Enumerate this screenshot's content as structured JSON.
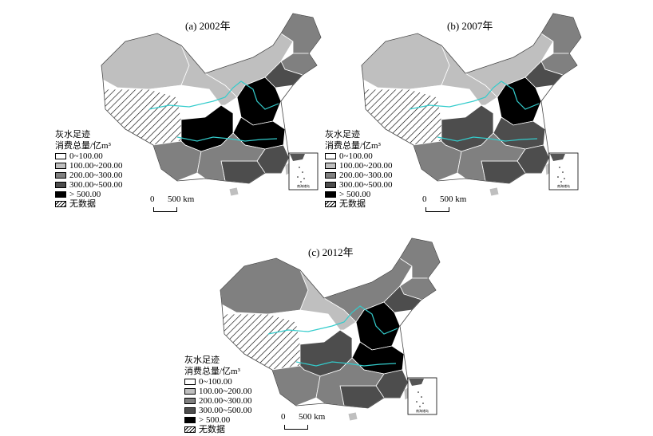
{
  "legend": {
    "title_line1": "灰水足迹",
    "title_line2": "消费总量/亿m³",
    "classes": [
      {
        "label": "0~100.00",
        "color": "#ffffff"
      },
      {
        "label": "100.00~200.00",
        "color": "#bfbfbf"
      },
      {
        "label": "200.00~300.00",
        "color": "#808080"
      },
      {
        "label": "300.00~500.00",
        "color": "#4d4d4d"
      },
      {
        "label": "> 500.00",
        "color": "#000000"
      }
    ],
    "nodata_label": "无数据"
  },
  "scale": {
    "zero": "0",
    "distance": "500 km"
  },
  "inset_label": "南海诸岛",
  "river_color": "#33cccc",
  "panels": [
    {
      "title": "(a) 2002年",
      "regions": {
        "xinjiang": 1,
        "tibet": "nodata",
        "qinghai": 0,
        "gansu": 1,
        "inner_mongolia": 1,
        "heilongjiang": 2,
        "jilin": 2,
        "liaoning": 3,
        "north": 4,
        "central": 4,
        "sichuan": 4,
        "yunnan": 2,
        "southeast": 3,
        "guangdong": 3,
        "south": 2,
        "hainan": 1,
        "taiwan": 1
      }
    },
    {
      "title": "(b) 2007年",
      "regions": {
        "xinjiang": 1,
        "tibet": "nodata",
        "qinghai": 0,
        "gansu": 1,
        "inner_mongolia": 1,
        "heilongjiang": 2,
        "jilin": 2,
        "liaoning": 3,
        "north": 4,
        "central": 3,
        "sichuan": 3,
        "yunnan": 2,
        "southeast": 3,
        "guangdong": 3,
        "south": 2,
        "hainan": 1,
        "taiwan": 1
      }
    },
    {
      "title": "(c) 2012年",
      "regions": {
        "xinjiang": 2,
        "tibet": "nodata",
        "qinghai": 0,
        "gansu": 1,
        "inner_mongolia": 2,
        "heilongjiang": 2,
        "jilin": 2,
        "liaoning": 3,
        "north": 4,
        "central": 4,
        "sichuan": 3,
        "yunnan": 2,
        "southeast": 3,
        "guangdong": 3,
        "south": 2,
        "hainan": 1,
        "taiwan": 1
      }
    }
  ]
}
